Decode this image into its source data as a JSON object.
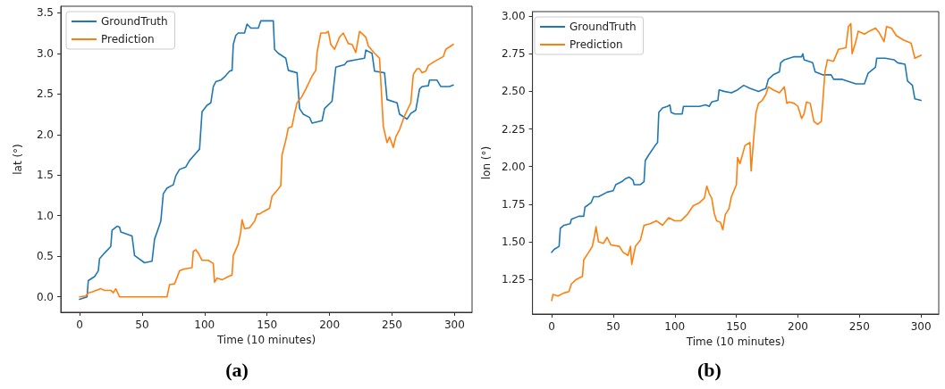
{
  "chart_data": [
    {
      "type": "line",
      "xlabel": "Time (10 minutes)",
      "ylabel": "lat (°)",
      "annotations": [
        "(a)"
      ],
      "xlim": [
        -15,
        314
      ],
      "ylim": [
        -0.19,
        3.58
      ],
      "xticks": [
        0,
        50,
        100,
        150,
        200,
        250,
        300
      ],
      "yticks": [
        {
          "value": 0,
          "label": "0.0"
        },
        {
          "value": 0.5,
          "label": "0.5"
        },
        {
          "value": 1,
          "label": "1.0"
        },
        {
          "value": 1.5,
          "label": "1.5"
        },
        {
          "value": 2,
          "label": "2.0"
        },
        {
          "value": 2.5,
          "label": "2.5"
        },
        {
          "value": 3,
          "label": "3.0"
        },
        {
          "value": 3.5,
          "label": "3.5"
        }
      ],
      "grid": false,
      "legend": "top left",
      "marker": "none",
      "line_style": "solid",
      "series": [
        {
          "name": "GroundTruth",
          "color": "#1f77b4",
          "x": [
            0,
            6,
            7,
            12,
            15,
            16,
            20,
            25,
            26,
            30,
            32,
            33,
            42,
            44,
            52,
            58,
            60,
            65,
            67,
            70,
            75,
            77,
            80,
            85,
            88,
            92,
            96,
            98,
            102,
            105,
            107,
            109,
            113,
            116,
            120,
            122,
            123,
            125,
            127,
            132,
            134,
            137,
            143,
            145,
            155,
            156,
            159,
            165,
            167,
            174,
            176,
            179,
            184,
            186,
            194,
            196,
            202,
            205,
            212,
            214,
            221,
            228,
            229,
            234,
            236,
            244,
            246,
            254,
            256,
            262,
            265,
            269,
            272,
            274,
            279,
            280,
            286,
            289,
            296,
            299
          ],
          "values": [
            -0.03,
            0.0,
            0.2,
            0.25,
            0.32,
            0.47,
            0.54,
            0.62,
            0.82,
            0.87,
            0.86,
            0.8,
            0.75,
            0.51,
            0.42,
            0.44,
            0.71,
            0.93,
            1.27,
            1.34,
            1.38,
            1.49,
            1.57,
            1.6,
            1.68,
            1.75,
            1.82,
            2.28,
            2.36,
            2.39,
            2.59,
            2.65,
            2.67,
            2.71,
            2.78,
            2.79,
            3.11,
            3.22,
            3.25,
            3.25,
            3.36,
            3.31,
            3.31,
            3.4,
            3.4,
            3.05,
            3.0,
            2.94,
            2.79,
            2.76,
            2.32,
            2.25,
            2.21,
            2.14,
            2.17,
            2.32,
            2.41,
            2.83,
            2.86,
            2.9,
            2.92,
            2.94,
            3.04,
            3.0,
            2.78,
            2.76,
            2.43,
            2.39,
            2.25,
            2.19,
            2.26,
            2.3,
            2.56,
            2.59,
            2.6,
            2.67,
            2.67,
            2.59,
            2.59,
            2.61
          ]
        },
        {
          "name": "Prediction",
          "color": "#ff7f0e",
          "x": [
            0,
            5,
            7,
            10,
            17,
            20,
            25,
            27,
            29,
            32,
            70,
            72,
            76,
            80,
            83,
            90,
            91,
            93,
            95,
            98,
            103,
            107,
            108,
            110,
            114,
            119,
            122,
            123,
            127,
            129,
            130,
            132,
            136,
            140,
            142,
            144,
            147,
            152,
            154,
            159,
            161,
            162,
            165,
            167,
            170,
            172,
            174,
            178,
            181,
            186,
            189,
            190,
            193,
            197,
            199,
            201,
            204,
            208,
            211,
            215,
            218,
            221,
            224,
            229,
            231,
            236,
            240,
            243,
            246,
            248,
            251,
            253,
            256,
            260,
            265,
            267,
            270,
            272,
            274,
            277,
            279,
            284,
            291,
            293,
            299
          ],
          "values": [
            0.0,
            0.01,
            0.05,
            0.06,
            0.1,
            0.08,
            0.08,
            0.05,
            0.1,
            0.0,
            0.0,
            0.15,
            0.16,
            0.32,
            0.34,
            0.36,
            0.56,
            0.58,
            0.54,
            0.45,
            0.45,
            0.41,
            0.18,
            0.23,
            0.21,
            0.25,
            0.27,
            0.51,
            0.65,
            0.8,
            0.95,
            0.84,
            0.85,
            0.93,
            1.02,
            1.02,
            1.05,
            1.09,
            1.24,
            1.33,
            1.37,
            1.75,
            1.93,
            2.08,
            2.1,
            2.26,
            2.39,
            2.47,
            2.56,
            2.72,
            2.79,
            3.01,
            3.25,
            3.25,
            3.27,
            3.11,
            3.05,
            3.2,
            3.25,
            3.12,
            3.11,
            3.01,
            3.27,
            3.2,
            3.09,
            3.0,
            2.94,
            2.1,
            1.9,
            1.97,
            1.84,
            1.97,
            2.06,
            2.23,
            2.39,
            2.74,
            2.81,
            2.81,
            2.76,
            2.78,
            2.85,
            2.9,
            2.96,
            3.05,
            3.11
          ]
        }
      ]
    },
    {
      "type": "line",
      "xlabel": "Time (10 minutes)",
      "ylabel": "lon (°)",
      "annotations": [
        "(b)"
      ],
      "xlim": [
        -15.6,
        314.4
      ],
      "ylim": [
        1.02,
        3.03
      ],
      "xticks": [
        0,
        50,
        100,
        150,
        200,
        250,
        300
      ],
      "yticks": [
        1.25,
        {
          "value": 1.5,
          "label": "1.50"
        },
        1.75,
        {
          "value": 2,
          "label": "2.00"
        },
        2.25,
        {
          "value": 2.5,
          "label": "2.50"
        },
        2.75,
        {
          "value": 3,
          "label": "3.00"
        }
      ],
      "grid": false,
      "legend": "top left",
      "marker": "none",
      "line_style": "solid",
      "series": [
        {
          "name": "GroundTruth",
          "color": "#1f77b4",
          "x": [
            0,
            2,
            6,
            7,
            10,
            15,
            16,
            22,
            26,
            27,
            32,
            34,
            38,
            45,
            50,
            52,
            57,
            60,
            63,
            66,
            67,
            72,
            75,
            76,
            79,
            84,
            86,
            87,
            90,
            94,
            96,
            97,
            100,
            106,
            107,
            115,
            120,
            125,
            128,
            130,
            135,
            136,
            140,
            146,
            151,
            156,
            161,
            168,
            174,
            176,
            180,
            185,
            186,
            189,
            197,
            203,
            204,
            205,
            212,
            214,
            220,
            227,
            229,
            236,
            247,
            254,
            257,
            263,
            264,
            271,
            278,
            281,
            287,
            289,
            293,
            295,
            300
          ],
          "values": [
            1.43,
            1.45,
            1.47,
            1.59,
            1.61,
            1.62,
            1.65,
            1.67,
            1.67,
            1.73,
            1.76,
            1.8,
            1.8,
            1.83,
            1.84,
            1.88,
            1.9,
            1.92,
            1.93,
            1.91,
            1.88,
            1.88,
            1.9,
            2.04,
            2.08,
            2.14,
            2.16,
            2.36,
            2.39,
            2.4,
            2.41,
            2.36,
            2.35,
            2.35,
            2.4,
            2.4,
            2.4,
            2.41,
            2.4,
            2.43,
            2.44,
            2.51,
            2.5,
            2.49,
            2.51,
            2.54,
            2.52,
            2.5,
            2.52,
            2.58,
            2.61,
            2.63,
            2.69,
            2.71,
            2.73,
            2.73,
            2.75,
            2.71,
            2.69,
            2.63,
            2.61,
            2.61,
            2.58,
            2.58,
            2.55,
            2.55,
            2.62,
            2.66,
            2.72,
            2.72,
            2.71,
            2.69,
            2.68,
            2.57,
            2.54,
            2.45,
            2.44
          ]
        },
        {
          "name": "Prediction",
          "color": "#ff7f0e",
          "x": [
            0,
            1,
            5,
            10,
            14,
            16,
            20,
            25,
            26,
            30,
            33,
            35,
            36,
            38,
            42,
            45,
            48,
            55,
            58,
            62,
            64,
            65,
            68,
            72,
            75,
            80,
            85,
            90,
            95,
            100,
            105,
            110,
            115,
            120,
            124,
            126,
            128,
            130,
            132,
            134,
            137,
            139,
            141,
            144,
            146,
            150,
            151,
            153,
            157,
            161,
            162,
            164,
            166,
            168,
            171,
            174,
            176,
            180,
            185,
            189,
            191,
            193,
            197,
            200,
            203,
            205,
            207,
            210,
            213,
            216,
            219,
            222,
            224,
            229,
            233,
            239,
            241,
            243,
            244,
            247,
            249,
            254,
            258,
            263,
            266,
            270,
            272,
            276,
            280,
            286,
            292,
            295,
            300
          ],
          "values": [
            1.11,
            1.15,
            1.14,
            1.16,
            1.17,
            1.22,
            1.25,
            1.27,
            1.38,
            1.43,
            1.47,
            1.55,
            1.6,
            1.5,
            1.49,
            1.53,
            1.48,
            1.47,
            1.43,
            1.41,
            1.47,
            1.35,
            1.47,
            1.51,
            1.61,
            1.62,
            1.64,
            1.61,
            1.66,
            1.64,
            1.64,
            1.68,
            1.74,
            1.76,
            1.79,
            1.87,
            1.82,
            1.79,
            1.69,
            1.64,
            1.63,
            1.58,
            1.68,
            1.72,
            1.8,
            1.88,
            2.06,
            2.02,
            2.14,
            2.16,
            1.97,
            2.18,
            2.36,
            2.42,
            2.44,
            2.48,
            2.53,
            2.51,
            2.49,
            2.53,
            2.42,
            2.43,
            2.42,
            2.4,
            2.32,
            2.35,
            2.43,
            2.42,
            2.3,
            2.28,
            2.3,
            2.63,
            2.71,
            2.7,
            2.78,
            2.79,
            2.93,
            2.95,
            2.75,
            2.83,
            2.9,
            2.88,
            2.9,
            2.92,
            2.89,
            2.83,
            2.93,
            2.92,
            2.87,
            2.84,
            2.82,
            2.72,
            2.74
          ]
        }
      ]
    }
  ]
}
